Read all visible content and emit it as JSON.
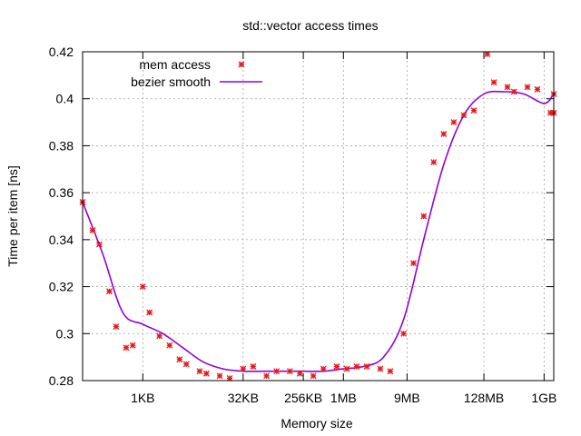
{
  "chart_data": {
    "type": "scatter",
    "title": "std::vector access times",
    "xlabel": "Memory size",
    "ylabel": "Time per item [ns]",
    "x_scale": "log2",
    "x_unit": "bytes",
    "xlim": [
      128,
      1500000000
    ],
    "ylim": [
      0.28,
      0.42
    ],
    "grid": true,
    "legend_position": "top-left",
    "x_ticks": [
      {
        "value": 1024,
        "label": "1KB"
      },
      {
        "value": 32768,
        "label": "32KB"
      },
      {
        "value": 262144,
        "label": "256KB"
      },
      {
        "value": 1048576,
        "label": "1MB"
      },
      {
        "value": 9437184,
        "label": "9MB"
      },
      {
        "value": 134217728,
        "label": "128MB"
      },
      {
        "value": 1073741824,
        "label": "1GB"
      }
    ],
    "y_ticks": [
      {
        "value": 0.28,
        "label": "0.28"
      },
      {
        "value": 0.3,
        "label": "0.3"
      },
      {
        "value": 0.32,
        "label": "0.32"
      },
      {
        "value": 0.34,
        "label": "0.34"
      },
      {
        "value": 0.36,
        "label": "0.36"
      },
      {
        "value": 0.38,
        "label": "0.38"
      },
      {
        "value": 0.4,
        "label": "0.4"
      },
      {
        "value": 0.42,
        "label": "0.42"
      }
    ],
    "series": [
      {
        "name": "mem access",
        "kind": "points",
        "color": "#e41a1c",
        "points": [
          [
            128,
            0.356
          ],
          [
            181,
            0.344
          ],
          [
            228,
            0.338
          ],
          [
            323,
            0.318
          ],
          [
            406,
            0.303
          ],
          [
            575,
            0.294
          ],
          [
            724,
            0.295
          ],
          [
            1024,
            0.32
          ],
          [
            1290,
            0.309
          ],
          [
            1820,
            0.299
          ],
          [
            2580,
            0.295
          ],
          [
            3650,
            0.289
          ],
          [
            4600,
            0.287
          ],
          [
            7300,
            0.284
          ],
          [
            9200,
            0.283
          ],
          [
            14600,
            0.282
          ],
          [
            20600,
            0.281
          ],
          [
            32768,
            0.285
          ],
          [
            46300,
            0.286
          ],
          [
            73500,
            0.282
          ],
          [
            104000,
            0.284
          ],
          [
            165000,
            0.284
          ],
          [
            233000,
            0.283
          ],
          [
            370000,
            0.282
          ],
          [
            524000,
            0.285
          ],
          [
            832000,
            0.286
          ],
          [
            1180000,
            0.285
          ],
          [
            1660000,
            0.286
          ],
          [
            2350000,
            0.286
          ],
          [
            3740000,
            0.285
          ],
          [
            5280000,
            0.284
          ],
          [
            8380000,
            0.3
          ],
          [
            11800000,
            0.33
          ],
          [
            16800000,
            0.35
          ],
          [
            23700000,
            0.373
          ],
          [
            33500000,
            0.385
          ],
          [
            47400000,
            0.39
          ],
          [
            67000000,
            0.393
          ],
          [
            95000000,
            0.395
          ],
          [
            151000000,
            0.419
          ],
          [
            190000000,
            0.407
          ],
          [
            302000000,
            0.405
          ],
          [
            380000000,
            0.403
          ],
          [
            604000000,
            0.405
          ],
          [
            852000000,
            0.404
          ],
          [
            1340000000,
            0.394
          ],
          [
            1700000000,
            0.394
          ],
          [
            2130000000,
            0.402
          ]
        ]
      },
      {
        "name": "bezier smooth",
        "kind": "line",
        "color": "#9400d3",
        "points": [
          [
            128,
            0.356
          ],
          [
            256,
            0.334
          ],
          [
            512,
            0.309
          ],
          [
            1024,
            0.304
          ],
          [
            2048,
            0.3
          ],
          [
            4096,
            0.294
          ],
          [
            8192,
            0.288
          ],
          [
            16384,
            0.285
          ],
          [
            32768,
            0.284
          ],
          [
            65536,
            0.284
          ],
          [
            131072,
            0.284
          ],
          [
            262144,
            0.284
          ],
          [
            524288,
            0.284
          ],
          [
            1048576,
            0.285
          ],
          [
            2097152,
            0.286
          ],
          [
            4194304,
            0.29
          ],
          [
            8388608,
            0.306
          ],
          [
            16777216,
            0.34
          ],
          [
            33554432,
            0.372
          ],
          [
            67108864,
            0.393
          ],
          [
            134217728,
            0.402
          ],
          [
            268435456,
            0.403
          ],
          [
            536870912,
            0.402
          ],
          [
            1073741824,
            0.398
          ],
          [
            2147483648,
            0.402
          ]
        ]
      }
    ]
  }
}
